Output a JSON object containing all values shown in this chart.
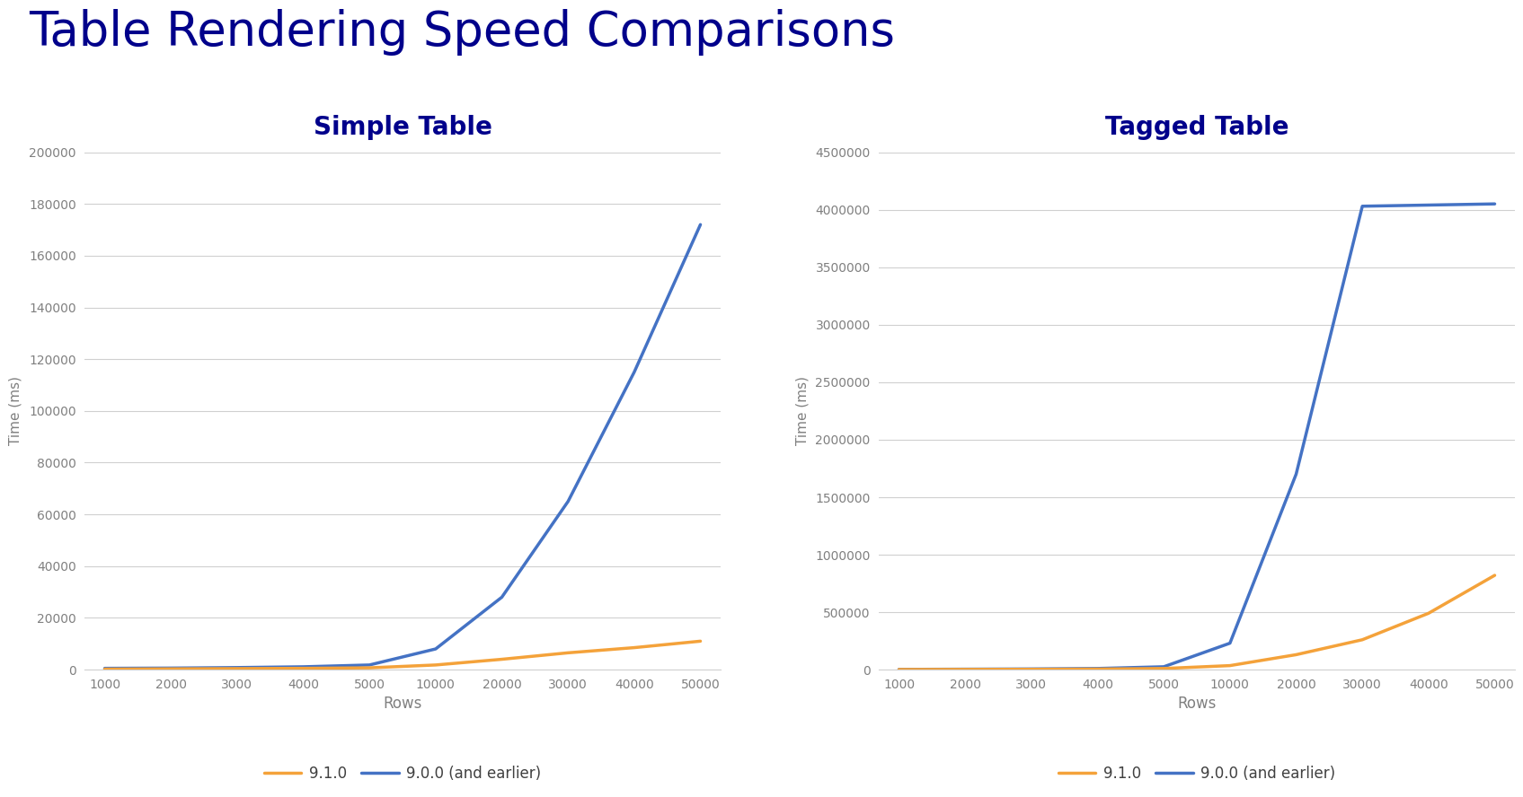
{
  "title": "Table Rendering Speed Comparisons",
  "title_color": "#00008B",
  "title_fontsize": 38,
  "background_color": "#ffffff",
  "subplot1_title": "Simple Table",
  "subplot2_title": "Tagged Table",
  "subplot_title_color": "#00008B",
  "subplot_title_fontsize": 20,
  "x_ticks": [
    1000,
    2000,
    3000,
    4000,
    5000,
    10000,
    20000,
    30000,
    40000,
    50000
  ],
  "xlabel": "Rows",
  "ylabel": "Time (ms)",
  "simple_9_1_0": [
    200,
    300,
    400,
    500,
    700,
    1800,
    4000,
    6500,
    8500,
    11000
  ],
  "simple_9_0_0": [
    500,
    600,
    800,
    1100,
    1800,
    8000,
    28000,
    65000,
    115000,
    172000
  ],
  "tagged_9_1_0": [
    1000,
    2000,
    3000,
    5000,
    10000,
    35000,
    130000,
    260000,
    490000,
    820000
  ],
  "tagged_9_0_0": [
    2000,
    4000,
    6000,
    10000,
    25000,
    230000,
    1700000,
    4030000,
    4040000,
    4050000
  ],
  "color_9_1_0": "#f4a23a",
  "color_9_0_0": "#4472c4",
  "line_width": 2.5,
  "legend_91": "9.1.0",
  "legend_90": "9.0.0 (and earlier)",
  "simple_ylim": [
    0,
    200000
  ],
  "simple_yticks": [
    0,
    20000,
    40000,
    60000,
    80000,
    100000,
    120000,
    140000,
    160000,
    180000,
    200000
  ],
  "tagged_ylim": [
    0,
    4500000
  ],
  "tagged_yticks": [
    0,
    500000,
    1000000,
    1500000,
    2000000,
    2500000,
    3000000,
    3500000,
    4000000,
    4500000
  ]
}
